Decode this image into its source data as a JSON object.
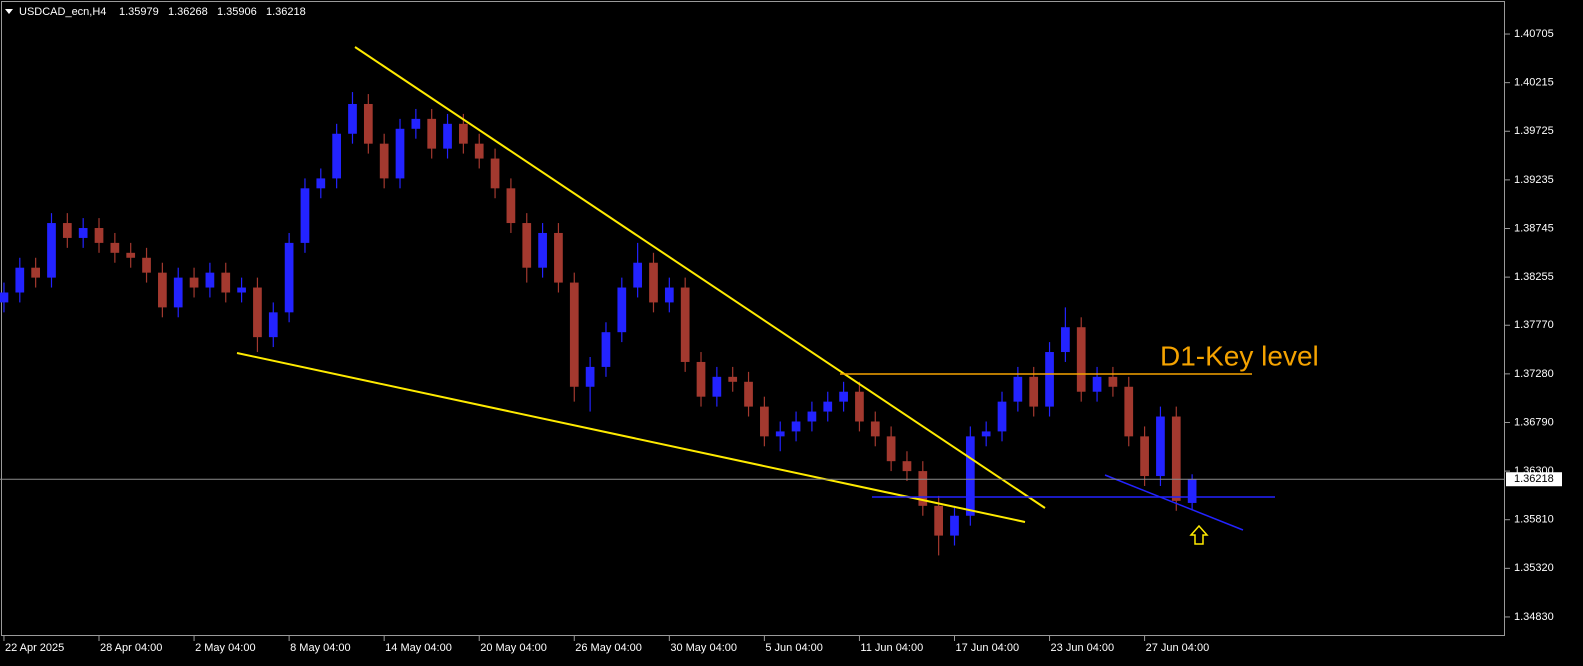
{
  "chart_data": {
    "type": "candlestick",
    "symbol": "USDCAD_ecn,H4",
    "header_values": [
      1.35979,
      1.36268,
      1.35906,
      1.36218
    ],
    "annotation": "D1-Key level",
    "current_price": 1.36218,
    "up_color": "#2323ff",
    "down_color": "#a3392f",
    "xlim": [
      -1,
      379
    ],
    "ylim": [
      1.34638,
      1.41048
    ],
    "xticks": [
      {
        "value": 0,
        "label": "22 Apr 2025"
      },
      {
        "value": 24,
        "label": "28 Apr 04:00"
      },
      {
        "value": 48,
        "label": "2 May 04:00"
      },
      {
        "value": 72,
        "label": "8 May 04:00"
      },
      {
        "value": 96,
        "label": "14 May 04:00"
      },
      {
        "value": 120,
        "label": "20 May 04:00"
      },
      {
        "value": 144,
        "label": "26 May 04:00"
      },
      {
        "value": 168,
        "label": "30 May 04:00"
      },
      {
        "value": 192,
        "label": "5 Jun 04:00"
      },
      {
        "value": 216,
        "label": "11 Jun 04:00"
      },
      {
        "value": 240,
        "label": "17 Jun 04:00"
      },
      {
        "value": 264,
        "label": "23 Jun 04:00"
      },
      {
        "value": 288,
        "label": "27 Jun 04:00"
      }
    ],
    "yticks": [
      1.40705,
      1.40215,
      1.39725,
      1.39235,
      1.38745,
      1.38255,
      {
        "value": 1.3777,
        "label": "1.37770"
      },
      {
        "value": 1.3728,
        "label": "1.37280"
      },
      {
        "value": 1.3679,
        "label": "1.36790"
      },
      {
        "value": 1.363,
        "label": "1.36300"
      },
      {
        "value": 1.3581,
        "label": "1.35810"
      },
      {
        "value": 1.3532,
        "label": "1.35320"
      },
      {
        "value": 1.3483,
        "label": "1.34830"
      }
    ],
    "x": [
      0,
      4,
      8,
      12,
      16,
      20,
      24,
      28,
      32,
      36,
      40,
      44,
      48,
      52,
      56,
      60,
      64,
      68,
      72,
      76,
      80,
      84,
      88,
      92,
      96,
      100,
      104,
      108,
      112,
      116,
      120,
      124,
      128,
      132,
      136,
      140,
      144,
      148,
      152,
      156,
      160,
      164,
      168,
      172,
      176,
      180,
      184,
      188,
      192,
      196,
      200,
      204,
      208,
      212,
      216,
      220,
      224,
      228,
      232,
      236,
      240,
      244,
      248,
      252,
      256,
      260,
      264,
      268,
      272,
      276,
      280,
      284,
      288,
      292,
      296,
      300
    ],
    "open": [
      1.38,
      1.381,
      1.3835,
      1.3825,
      1.388,
      1.3865,
      1.3875,
      1.386,
      1.385,
      1.3845,
      1.383,
      1.3795,
      1.3825,
      1.3815,
      1.383,
      1.381,
      1.3815,
      1.3765,
      1.379,
      1.386,
      1.3915,
      1.3925,
      1.397,
      1.4,
      1.396,
      1.3925,
      1.3975,
      1.3985,
      1.3955,
      1.398,
      1.396,
      1.3945,
      1.3915,
      1.388,
      1.3835,
      1.387,
      1.382,
      1.3715,
      1.3735,
      1.377,
      1.3815,
      1.384,
      1.38,
      1.3815,
      1.374,
      1.3705,
      1.3725,
      1.372,
      1.3695,
      1.3665,
      1.367,
      1.368,
      1.369,
      1.37,
      1.371,
      1.368,
      1.3665,
      1.364,
      1.363,
      1.3595,
      1.3565,
      1.3585,
      1.3665,
      1.367,
      1.37,
      1.3725,
      1.3695,
      1.375,
      1.3775,
      1.371,
      1.3725,
      1.3715,
      1.3665,
      1.3625,
      1.3685,
      1.35979
    ],
    "high": [
      1.382,
      1.3845,
      1.3845,
      1.389,
      1.389,
      1.3885,
      1.3885,
      1.387,
      1.386,
      1.3855,
      1.384,
      1.3835,
      1.3835,
      1.384,
      1.384,
      1.3825,
      1.3825,
      1.38,
      1.387,
      1.3925,
      1.3935,
      1.398,
      1.4012,
      1.401,
      1.397,
      1.3985,
      1.3995,
      1.3995,
      1.399,
      1.399,
      1.397,
      1.3955,
      1.3925,
      1.389,
      1.388,
      1.388,
      1.383,
      1.3745,
      1.378,
      1.3825,
      1.386,
      1.385,
      1.3825,
      1.3825,
      1.375,
      1.3735,
      1.3735,
      1.373,
      1.3705,
      1.368,
      1.369,
      1.37,
      1.371,
      1.372,
      1.372,
      1.369,
      1.3675,
      1.365,
      1.364,
      1.3605,
      1.3595,
      1.3675,
      1.368,
      1.371,
      1.3735,
      1.3735,
      1.376,
      1.3795,
      1.3785,
      1.3735,
      1.3735,
      1.3725,
      1.3675,
      1.3695,
      1.3695,
      1.36268
    ],
    "low": [
      1.379,
      1.38,
      1.3815,
      1.3815,
      1.3855,
      1.3855,
      1.385,
      1.384,
      1.3835,
      1.382,
      1.3785,
      1.3785,
      1.3805,
      1.3805,
      1.38,
      1.38,
      1.375,
      1.3755,
      1.378,
      1.385,
      1.3905,
      1.3915,
      1.396,
      1.395,
      1.3915,
      1.3915,
      1.3965,
      1.3945,
      1.3945,
      1.395,
      1.3935,
      1.3905,
      1.387,
      1.382,
      1.3825,
      1.381,
      1.37,
      1.369,
      1.3725,
      1.376,
      1.3805,
      1.379,
      1.379,
      1.373,
      1.3695,
      1.3695,
      1.371,
      1.3685,
      1.3655,
      1.365,
      1.366,
      1.367,
      1.368,
      1.369,
      1.367,
      1.3655,
      1.363,
      1.362,
      1.3585,
      1.3545,
      1.3555,
      1.3575,
      1.3655,
      1.366,
      1.369,
      1.3685,
      1.3685,
      1.374,
      1.37,
      1.37,
      1.3705,
      1.3655,
      1.3615,
      1.3615,
      1.359,
      1.35906
    ],
    "close": [
      1.381,
      1.3835,
      1.3825,
      1.388,
      1.3865,
      1.3875,
      1.386,
      1.385,
      1.3845,
      1.383,
      1.3795,
      1.3825,
      1.3815,
      1.383,
      1.381,
      1.3815,
      1.3765,
      1.379,
      1.386,
      1.3915,
      1.3925,
      1.397,
      1.4,
      1.396,
      1.3925,
      1.3975,
      1.3985,
      1.3955,
      1.398,
      1.396,
      1.3945,
      1.3915,
      1.388,
      1.3835,
      1.387,
      1.382,
      1.3715,
      1.3735,
      1.377,
      1.3815,
      1.384,
      1.38,
      1.3815,
      1.374,
      1.3705,
      1.3725,
      1.372,
      1.3695,
      1.3665,
      1.367,
      1.368,
      1.369,
      1.37,
      1.371,
      1.368,
      1.3665,
      1.364,
      1.363,
      1.3595,
      1.3565,
      1.3585,
      1.3665,
      1.367,
      1.37,
      1.3725,
      1.3695,
      1.375,
      1.3775,
      1.371,
      1.3725,
      1.3715,
      1.3665,
      1.3625,
      1.3685,
      1.36,
      1.36218
    ]
  }
}
